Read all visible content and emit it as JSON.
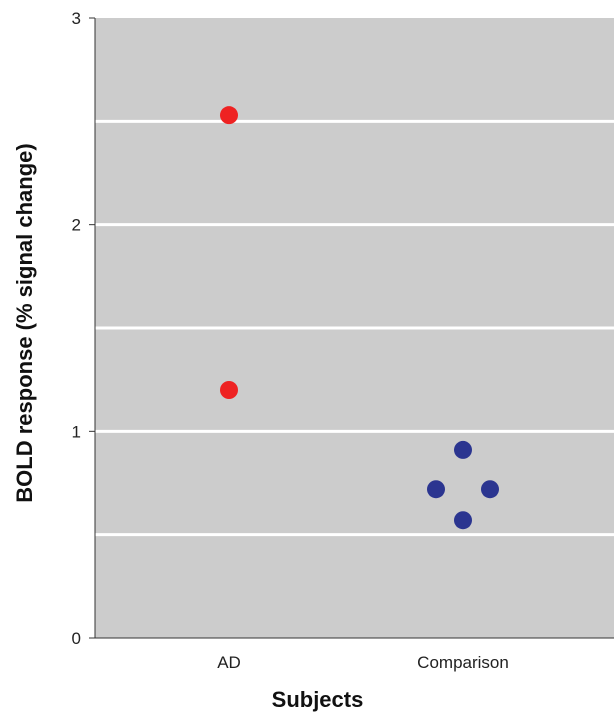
{
  "chart_data": {
    "type": "scatter",
    "title": "",
    "xlabel": "Subjects",
    "ylabel": "BOLD response (% signal change)",
    "categories": [
      "AD",
      "Comparison"
    ],
    "ylim": [
      0,
      3
    ],
    "y_ticks": [
      "0",
      "1",
      "2",
      "3"
    ],
    "gridlines_y": [
      0.5,
      1,
      1.5,
      2,
      2.5
    ],
    "grid": true,
    "series": [
      {
        "color": "#ee2222",
        "points": [
          {
            "category": "AD",
            "offset": 0,
            "y": 2.53
          },
          {
            "category": "AD",
            "offset": 0,
            "y": 1.2
          }
        ]
      },
      {
        "color": "#2b3590",
        "points": [
          {
            "category": "Comparison",
            "offset": 0,
            "y": 0.91
          },
          {
            "category": "Comparison",
            "offset": -1,
            "y": 0.72
          },
          {
            "category": "Comparison",
            "offset": 1,
            "y": 0.72
          },
          {
            "category": "Comparison",
            "offset": 0,
            "y": 0.57
          }
        ]
      }
    ],
    "colors": {
      "plot_background": "#cccccc",
      "gridline": "#ffffff",
      "axis": "#333333"
    }
  }
}
